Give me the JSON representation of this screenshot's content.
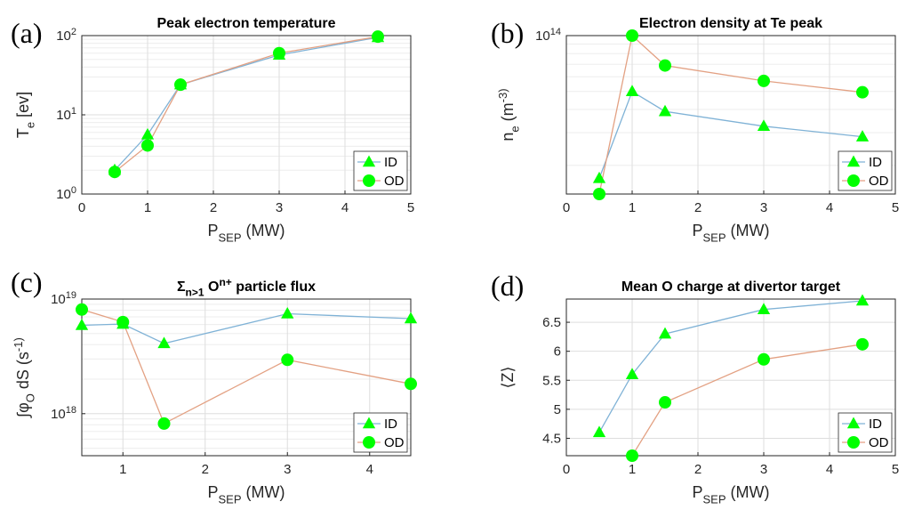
{
  "colors": {
    "marker_fill": "#00ff00",
    "id_line": "#7fb2d6",
    "od_line": "#e3a183",
    "axis": "#262626",
    "grid": "#dedede"
  },
  "chart_data": [
    {
      "id": "a",
      "type": "line",
      "panel_label": "(a)",
      "title": "Peak electron temperature",
      "xlabel": "P_SEP (MW)",
      "ylabel": "T_e [ev]",
      "yscale": "log",
      "xlim": [
        0,
        5
      ],
      "ylim": [
        1,
        100
      ],
      "xticks": [
        0,
        1,
        2,
        3,
        4,
        5
      ],
      "xtick_labels": [
        "0",
        "1",
        "2",
        "3",
        "4",
        "5"
      ],
      "yticks": [
        1,
        10,
        100
      ],
      "ytick_labels": [
        "10^0",
        "10^1",
        "10^2"
      ],
      "grid": true,
      "legend_position": "bottom-right",
      "x": [
        0.5,
        1,
        1.5,
        3,
        4.5
      ],
      "series": [
        {
          "name": "ID",
          "marker": "triangle",
          "values": [
            2.0,
            5.6,
            24,
            57,
            95
          ]
        },
        {
          "name": "OD",
          "marker": "circle",
          "values": [
            1.9,
            4.1,
            24,
            60,
            97
          ]
        }
      ]
    },
    {
      "id": "b",
      "type": "line",
      "panel_label": "(b)",
      "title": "Electron density at Te peak",
      "xlabel": "P_SEP (MW)",
      "ylabel": "n_e (m^-3)",
      "yscale": "log",
      "xlim": [
        0,
        5
      ],
      "ylim": [
        14000000000000.0,
        100000000000000.0
      ],
      "xticks": [
        0,
        1,
        2,
        3,
        4,
        5
      ],
      "xtick_labels": [
        "0",
        "1",
        "2",
        "3",
        "4",
        "5"
      ],
      "yticks": [
        100000000000000.0
      ],
      "ytick_labels": [
        "10^14"
      ],
      "grid": true,
      "legend_position": "bottom-right",
      "x": [
        0.5,
        1,
        1.5,
        3,
        4.5
      ],
      "series": [
        {
          "name": "ID",
          "marker": "triangle",
          "values": [
            17000000000000.0,
            50000000000000.0,
            39000000000000.0,
            32500000000000.0,
            28500000000000.0
          ]
        },
        {
          "name": "OD",
          "marker": "circle",
          "values": [
            14000000000000.0,
            100000000000000.0,
            69000000000000.0,
            57000000000000.0,
            49500000000000.0
          ]
        }
      ]
    },
    {
      "id": "c",
      "type": "line",
      "panel_label": "(c)",
      "title": "Σ_n>1 O^n+ particle flux",
      "xlabel": "P_SEP (MW)",
      "ylabel": "∫φ_O dS (s^-1)",
      "yscale": "log",
      "xlim": [
        0.5,
        4.5
      ],
      "ylim": [
        4.3e+17,
        1e+19
      ],
      "xticks": [
        1,
        2,
        3,
        4
      ],
      "xtick_labels": [
        "1",
        "2",
        "3",
        "4"
      ],
      "yticks": [
        1e+18,
        1e+19
      ],
      "ytick_labels": [
        "10^18",
        "10^19"
      ],
      "grid": true,
      "legend_position": "bottom-right",
      "x": [
        0.5,
        1,
        1.5,
        3,
        4.5
      ],
      "series": [
        {
          "name": "ID",
          "marker": "triangle",
          "values": [
            5.9e+18,
            6.05e+18,
            4.1e+18,
            7.45e+18,
            6.75e+18
          ]
        },
        {
          "name": "OD",
          "marker": "circle",
          "values": [
            8.1e+18,
            6.3e+18,
            8.2e+17,
            2.95e+18,
            1.82e+18
          ]
        }
      ]
    },
    {
      "id": "d",
      "type": "line",
      "panel_label": "(d)",
      "title": "Mean O charge at divertor target",
      "xlabel": "P_SEP (MW)",
      "ylabel": "⟨Z⟩",
      "yscale": "linear",
      "xlim": [
        0,
        5
      ],
      "ylim": [
        4.2,
        6.9
      ],
      "xticks": [
        0,
        1,
        2,
        3,
        4,
        5
      ],
      "xtick_labels": [
        "0",
        "1",
        "2",
        "3",
        "4",
        "5"
      ],
      "yticks": [
        4.5,
        5,
        5.5,
        6,
        6.5
      ],
      "ytick_labels": [
        "4.5",
        "5",
        "5.5",
        "6",
        "6.5"
      ],
      "grid": true,
      "legend_position": "bottom-right",
      "x": [
        0.5,
        1,
        1.5,
        3,
        4.5
      ],
      "series": [
        {
          "name": "ID",
          "marker": "triangle",
          "values": [
            4.6,
            5.6,
            6.3,
            6.72,
            6.87
          ]
        },
        {
          "name": "OD",
          "marker": "circle",
          "values": [
            null,
            4.2,
            5.12,
            5.86,
            6.12
          ]
        }
      ]
    }
  ]
}
